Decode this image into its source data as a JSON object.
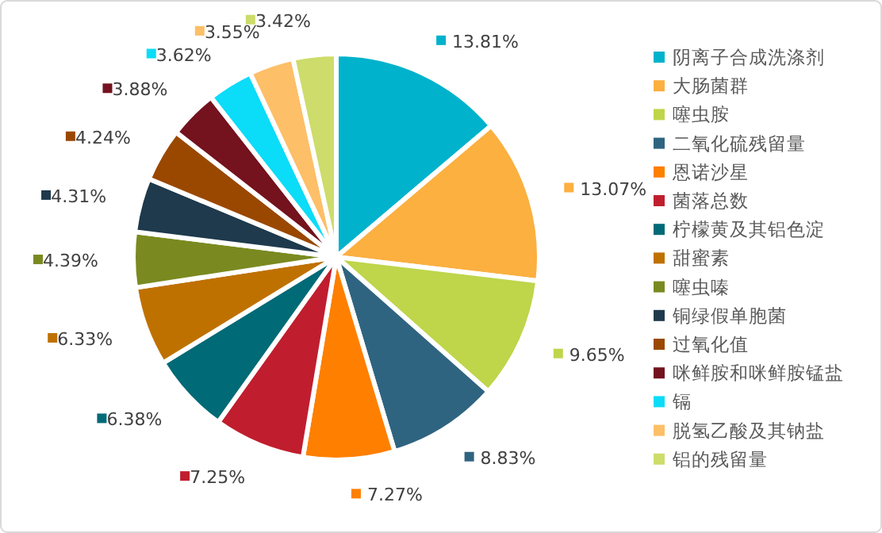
{
  "chart_data": {
    "type": "pie",
    "categories": [
      "阴离子合成洗涤剂",
      "大肠菌群",
      "噻虫胺",
      "二氧化硫残留量",
      "恩诺沙星",
      "菌落总数",
      "柠檬黄及其铝色淀",
      "甜蜜素",
      "噻虫嗪",
      "铜绿假单胞菌",
      "过氧化值",
      "咪鲜胺和咪鲜胺锰盐",
      "镉",
      "脱氢乙酸及其钠盐",
      "铝的残留量"
    ],
    "values": [
      13.81,
      13.07,
      9.65,
      8.83,
      7.27,
      7.25,
      6.38,
      6.33,
      4.39,
      4.31,
      4.24,
      3.88,
      3.62,
      3.55,
      3.42
    ],
    "value_labels": [
      "13.81%",
      "13.07%",
      "9.65%",
      "8.83%",
      "7.27%",
      "7.25%",
      "6.38%",
      "6.33%",
      "4.39%",
      "4.31%",
      "4.24%",
      "3.88%",
      "3.62%",
      "3.55%",
      "3.42%"
    ],
    "colors": [
      "#00b2cb",
      "#fbb040",
      "#bfd54a",
      "#2f6480",
      "#ff7f00",
      "#c01e2e",
      "#006a76",
      "#bf7100",
      "#7a8a20",
      "#1e3a4c",
      "#9a4800",
      "#74121e",
      "#0bdcf8",
      "#fdbf68",
      "#cddc6a"
    ],
    "legend": "right"
  }
}
